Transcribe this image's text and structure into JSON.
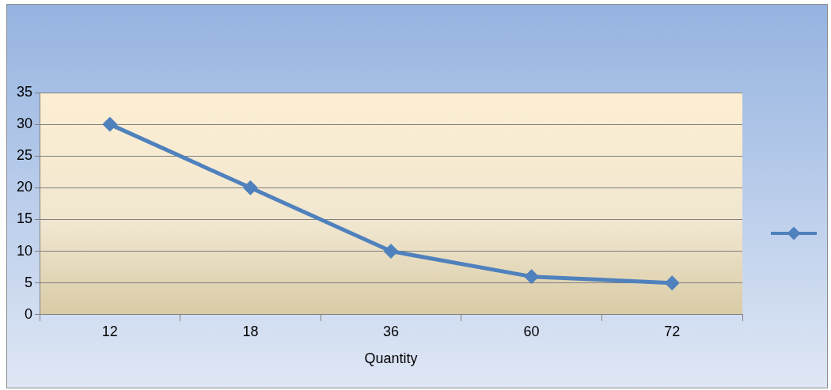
{
  "chart_data": {
    "type": "line",
    "xlabel": "Quantity",
    "categories": [
      "12",
      "18",
      "36",
      "60",
      "72"
    ],
    "series": [
      {
        "color": "#4f81bd",
        "values": [
          30,
          20,
          10,
          6,
          5
        ]
      }
    ],
    "ylim": [
      0,
      35
    ],
    "yticks": [
      0,
      5,
      10,
      15,
      20,
      25,
      30,
      35
    ],
    "grid": "y",
    "marker": "diamond",
    "line_style": "solid"
  }
}
